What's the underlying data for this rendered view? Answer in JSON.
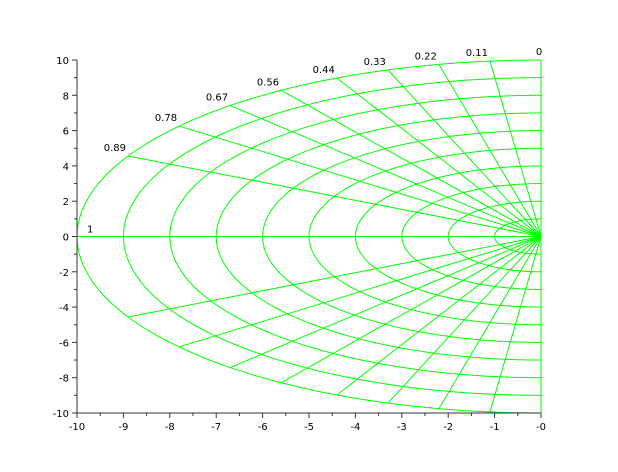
{
  "chart_data": {
    "type": "line",
    "title": "",
    "xlabel": "",
    "ylabel": "",
    "xlim": [
      -10,
      0
    ],
    "ylim": [
      -10,
      10
    ],
    "grid_color": "#00ff00",
    "natural_frequencies": [
      1,
      2,
      3,
      4,
      5,
      6,
      7,
      8,
      9,
      10
    ],
    "damping_ratios": [
      1,
      0.89,
      0.78,
      0.67,
      0.56,
      0.44,
      0.33,
      0.22,
      0.11,
      0
    ],
    "damping_labels": [
      "1",
      "0.89",
      "0.78",
      "0.67",
      "0.56",
      "0.44",
      "0.33",
      "0.22",
      "0.11",
      "0"
    ],
    "xticks": [
      "-10",
      "-9",
      "-8",
      "-7",
      "-6",
      "-5",
      "-4",
      "-3",
      "-2",
      "-1",
      "-0"
    ],
    "xtick_values": [
      -10,
      -9,
      -8,
      -7,
      -6,
      -5,
      -4,
      -3,
      -2,
      -1,
      0
    ],
    "yticks": [
      "-10",
      "-8",
      "-6",
      "-4",
      "-2",
      "0",
      "2",
      "4",
      "6",
      "8",
      "10"
    ],
    "ytick_values": [
      -10,
      -8,
      -6,
      -4,
      -2,
      0,
      2,
      4,
      6,
      8,
      10
    ]
  }
}
